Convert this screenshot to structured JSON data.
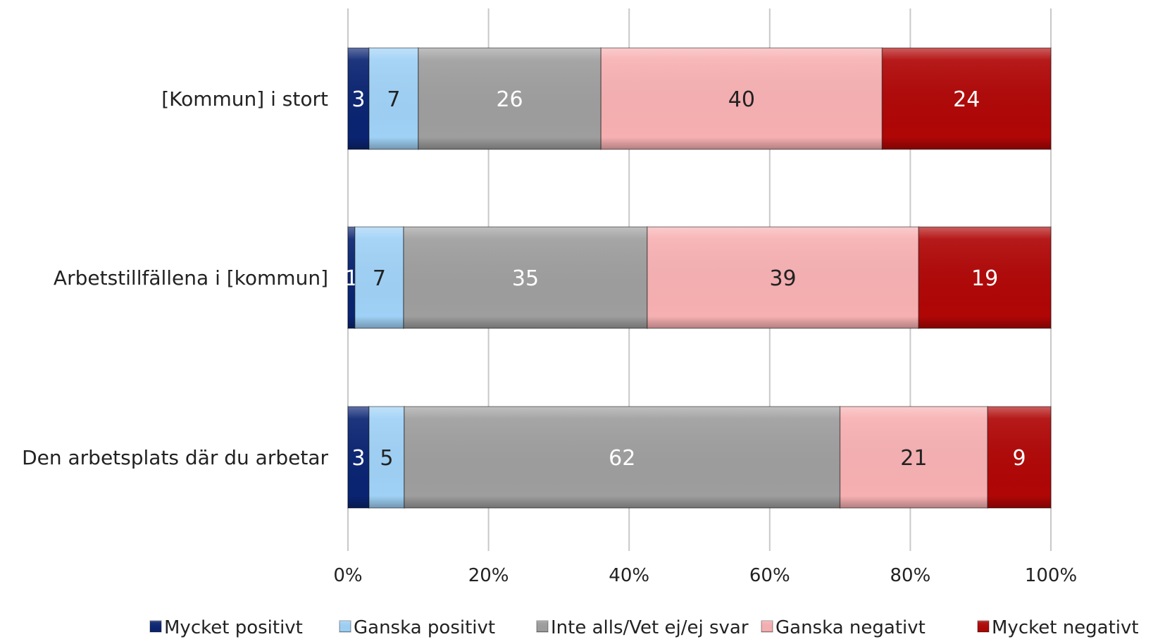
{
  "chart_data": {
    "type": "bar",
    "orientation": "horizontal",
    "stacked": "percent",
    "categories": [
      "[Kommun] i stort",
      "Arbetstillfällena i [kommun]",
      "Den arbetsplats där du arbetar"
    ],
    "series": [
      {
        "name": "Mycket positivt",
        "values": [
          3,
          1,
          3
        ],
        "color": "#0a2472",
        "label_color": "#ffffff"
      },
      {
        "name": "Ganska positivt",
        "values": [
          7,
          7,
          5
        ],
        "color": "#9fd1f6",
        "label_color": "#222222"
      },
      {
        "name": "Inte alls/Vet ej/ej svar",
        "values": [
          26,
          35,
          62
        ],
        "color": "#9e9e9e",
        "label_color": "#ffffff"
      },
      {
        "name": "Ganska negativt",
        "values": [
          40,
          39,
          21
        ],
        "color": "#f7b0b2",
        "label_color": "#222222"
      },
      {
        "name": "Mycket negativt",
        "values": [
          24,
          19,
          9
        ],
        "color": "#b00606",
        "label_color": "#ffffff"
      }
    ],
    "x_ticks": [
      "0%",
      "20%",
      "40%",
      "60%",
      "80%",
      "100%"
    ],
    "xlim": [
      0,
      100
    ],
    "grid": true,
    "legend_position": "bottom"
  }
}
